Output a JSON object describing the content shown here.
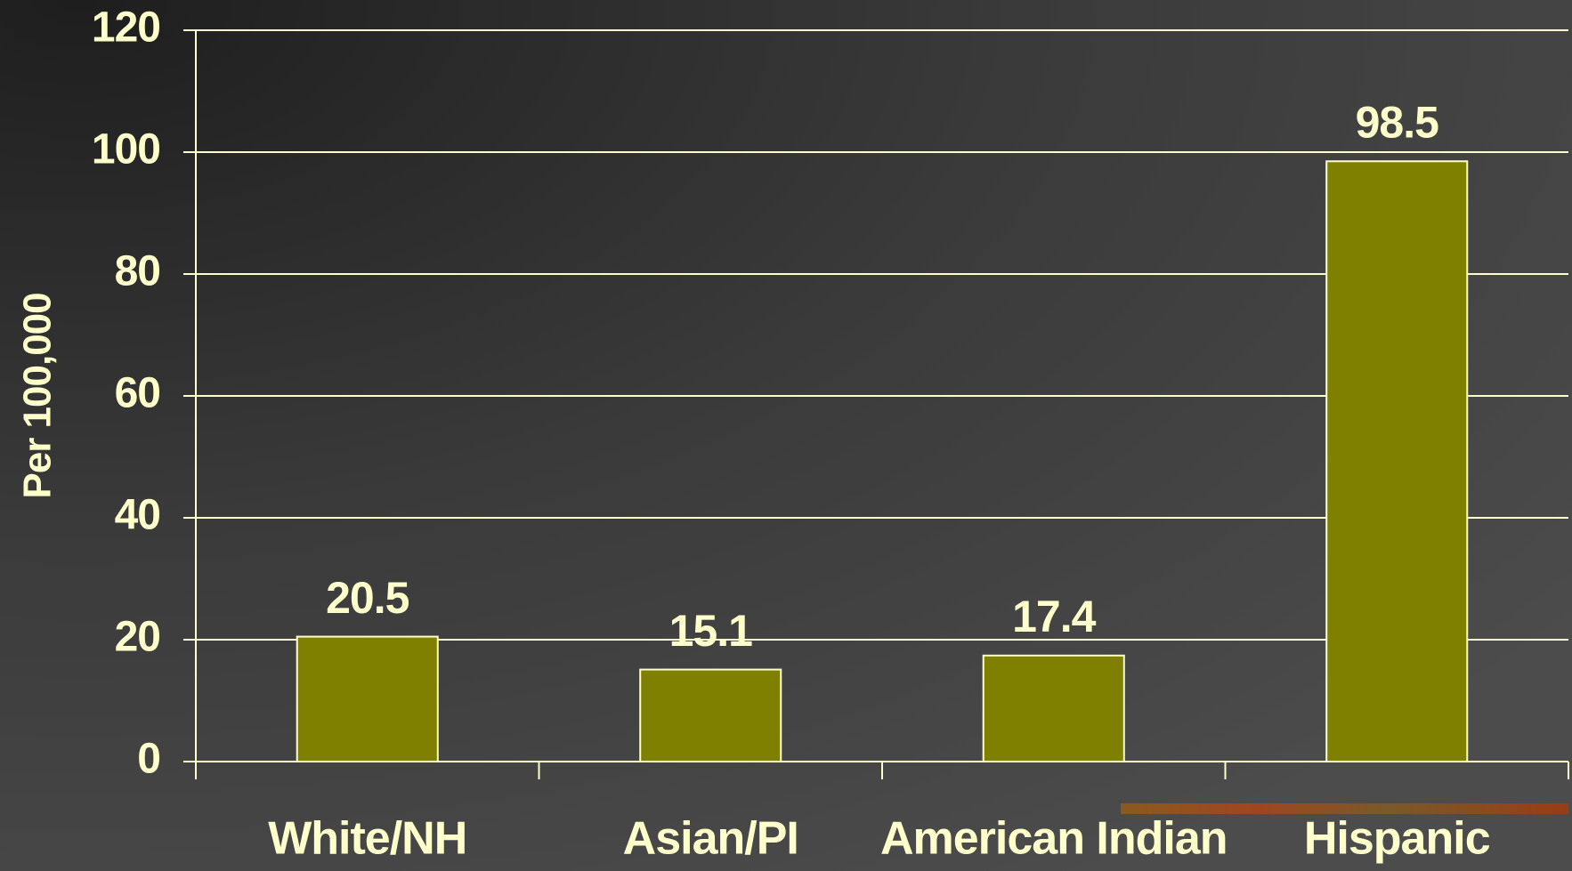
{
  "chart_data": {
    "type": "bar",
    "categories": [
      "White/NH",
      "Asian/PI",
      "American Indian",
      "Hispanic"
    ],
    "values": [
      20.5,
      15.1,
      17.4,
      98.5
    ],
    "color": "#808000",
    "ylabel": "Per 100,000",
    "ylim": [
      0,
      120
    ],
    "yticks": [
      0,
      20,
      40,
      60,
      80,
      100,
      120
    ],
    "grid": true
  }
}
